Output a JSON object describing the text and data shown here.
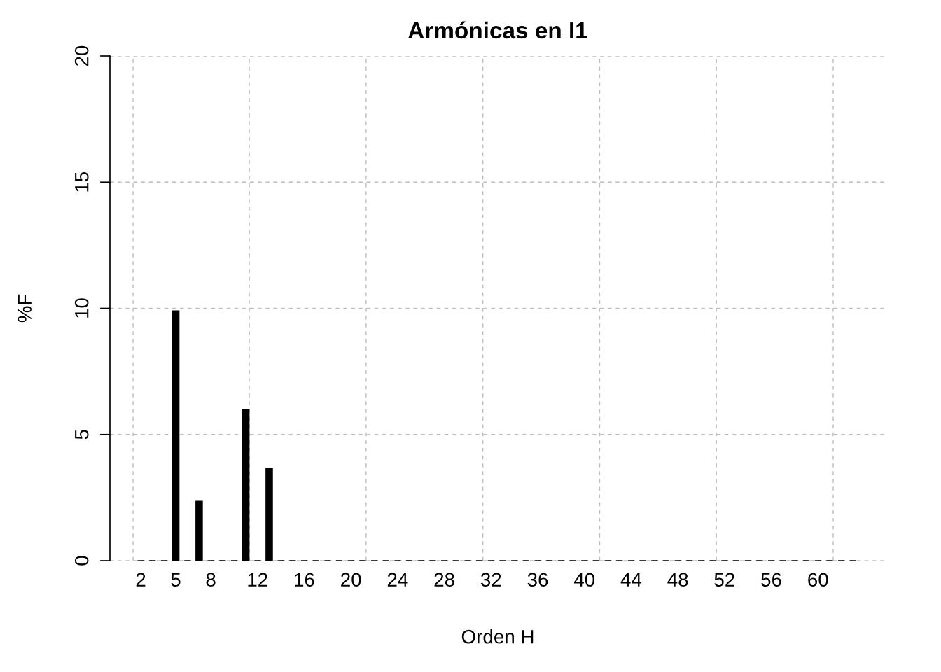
{
  "chart_data": {
    "type": "bar",
    "title": "Armónicas en I1",
    "xlabel": "Orden H",
    "ylabel": "%F",
    "x": [
      2,
      3,
      4,
      5,
      6,
      7,
      8,
      9,
      10,
      11,
      12,
      13,
      14,
      15,
      16,
      17,
      18,
      19,
      20,
      21,
      22,
      23,
      24,
      25,
      26,
      27,
      28,
      29,
      30,
      31,
      32,
      33,
      34,
      35,
      36,
      37,
      38,
      39,
      40,
      41,
      42,
      43,
      44,
      45,
      46,
      47,
      48,
      49,
      50,
      51,
      52,
      53,
      54,
      55,
      56,
      57,
      58,
      59,
      60,
      61,
      62,
      63
    ],
    "series": [
      {
        "color": "#000000",
        "values": [
          0,
          0,
          0,
          9.9,
          0,
          2.35,
          0,
          0,
          0,
          6.0,
          0,
          3.65,
          0,
          0,
          0,
          0,
          0,
          0,
          0,
          0,
          0,
          0,
          0,
          0,
          0,
          0,
          0,
          0,
          0,
          0,
          0,
          0,
          0,
          0,
          0,
          0,
          0,
          0,
          0,
          0,
          0,
          0,
          0,
          0,
          0,
          0,
          0,
          0,
          0,
          0,
          0,
          0,
          0,
          0,
          0,
          0,
          0,
          0,
          0,
          0,
          0,
          0
        ]
      }
    ],
    "xlim": [
      -0.64,
      65.8
    ],
    "xticks": [
      2,
      5,
      8,
      12,
      16,
      20,
      24,
      28,
      32,
      36,
      40,
      44,
      48,
      52,
      56,
      60
    ],
    "ylim": [
      0,
      20
    ],
    "yticks": [
      0,
      5,
      10,
      15,
      20
    ],
    "grid": "y",
    "ref_lines": [
      {
        "axis": "x",
        "value": 1.34,
        "color": "#bebebe",
        "line_style": "dashed"
      },
      {
        "axis": "x",
        "value": 11.3,
        "color": "#bebebe",
        "line_style": "dashed"
      },
      {
        "axis": "x",
        "value": 21.3,
        "color": "#bebebe",
        "line_style": "dashed"
      },
      {
        "axis": "x",
        "value": 31.3,
        "color": "#bebebe",
        "line_style": "dashed"
      },
      {
        "axis": "x",
        "value": 41.3,
        "color": "#bebebe",
        "line_style": "dashed"
      },
      {
        "axis": "x",
        "value": 51.3,
        "color": "#bebebe",
        "line_style": "dashed"
      },
      {
        "axis": "x",
        "value": 61.3,
        "color": "#bebebe",
        "line_style": "dashed"
      }
    ]
  }
}
